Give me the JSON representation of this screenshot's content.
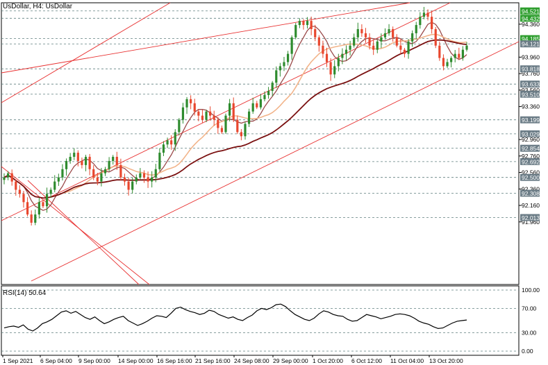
{
  "chart_data": {
    "type": "candlestick",
    "title": "UsDollar, H4:  UsDollar",
    "colors": {
      "bull": "#2e8b2e",
      "bear": "#e8472e",
      "ma_fast": "#9b4a4a",
      "ma_mid": "#f2b48a",
      "ma_slow": "#7a1010",
      "channel": "#e83030",
      "level_line": "#5f7f7f",
      "label_bg": "#6b7c86",
      "label_highlight": "#2e9e2e",
      "rsi_line": "#000000"
    },
    "price_axis": {
      "min": 91.2,
      "max": 94.62,
      "tick_labels": [
        "94.360",
        "93.960",
        "93.760",
        "93.560",
        "93.360",
        "92.960",
        "92.760",
        "92.560",
        "92.360",
        "92.160",
        "91.960"
      ]
    },
    "levels": [
      {
        "value": 94.521,
        "label": "94.521",
        "highlight": true
      },
      {
        "value": 94.432,
        "label": "94.432",
        "highlight": true
      },
      {
        "value": 94.185,
        "label": "94.185",
        "highlight": true
      },
      {
        "value": 94.121,
        "label": "94.121",
        "highlight": false
      },
      {
        "value": 93.818,
        "label": "93.818",
        "highlight": false
      },
      {
        "value": 93.633,
        "label": "93.633",
        "highlight": false
      },
      {
        "value": 93.51,
        "label": "93.510",
        "highlight": false
      },
      {
        "value": 93.199,
        "label": "93.199",
        "highlight": false
      },
      {
        "value": 93.029,
        "label": "93.029",
        "highlight": false
      },
      {
        "value": 92.854,
        "label": "92.854",
        "highlight": false
      },
      {
        "value": 92.692,
        "label": "92.692",
        "highlight": false
      },
      {
        "value": 92.5,
        "label": "92.500",
        "highlight": false
      },
      {
        "value": 92.308,
        "label": "92.308",
        "highlight": false
      },
      {
        "value": 92.013,
        "label": "92.013",
        "highlight": false
      }
    ],
    "x_labels": [
      "1 Sep 2021",
      "6 Sep 04:00",
      "9 Sep 00:00",
      "14 Sep 00:00",
      "16 Sep 16:00",
      "21 Sep 16:00",
      "24 Sep 08:00",
      "29 Sep 00:00",
      "1 Oct 20:00",
      "6 Oct 12:00",
      "11 Oct 04:00",
      "13 Oct 20:00"
    ],
    "price_path": [
      92.5,
      92.55,
      92.45,
      92.35,
      92.3,
      92.2,
      92.05,
      91.95,
      92.05,
      92.2,
      92.15,
      92.3,
      92.35,
      92.45,
      92.5,
      92.6,
      92.7,
      92.75,
      92.8,
      92.7,
      92.65,
      92.75,
      92.6,
      92.5,
      92.45,
      92.55,
      92.6,
      92.7,
      92.75,
      92.65,
      92.5,
      92.45,
      92.35,
      92.45,
      92.5,
      92.55,
      92.5,
      92.45,
      92.5,
      92.6,
      92.8,
      92.9,
      92.95,
      92.9,
      93.05,
      93.2,
      93.35,
      93.45,
      93.4,
      93.3,
      93.25,
      93.2,
      93.3,
      93.25,
      93.2,
      93.1,
      93.05,
      93.25,
      93.4,
      93.2,
      93.05,
      93.0,
      93.15,
      93.3,
      93.4,
      93.35,
      93.45,
      93.5,
      93.55,
      93.65,
      93.8,
      93.85,
      93.9,
      94.0,
      94.2,
      94.35,
      94.4,
      94.35,
      94.4,
      94.3,
      94.2,
      94.1,
      94.0,
      93.9,
      93.75,
      93.85,
      93.95,
      94.0,
      94.05,
      94.1,
      94.2,
      94.3,
      94.25,
      94.2,
      94.1,
      94.05,
      94.15,
      94.2,
      94.25,
      94.3,
      94.2,
      94.1,
      94.05,
      94.0,
      94.15,
      94.25,
      94.35,
      94.45,
      94.5,
      94.45,
      94.3,
      94.1,
      93.95,
      93.85,
      93.9,
      93.95,
      94.0,
      93.95,
      94.05,
      94.1
    ],
    "indicator": {
      "label": "RSI(14) 50.64",
      "levels": [
        "100.00",
        "70.00",
        "30.00",
        "0.00"
      ],
      "values": [
        38,
        40,
        41,
        39,
        43,
        36,
        33,
        38,
        45,
        48,
        52,
        58,
        64,
        66,
        62,
        65,
        60,
        55,
        52,
        56,
        50,
        45,
        48,
        52,
        55,
        57,
        50,
        46,
        42,
        45,
        49,
        54,
        58,
        57,
        55,
        62,
        70,
        72,
        68,
        65,
        63,
        60,
        62,
        67,
        65,
        60,
        57,
        54,
        56,
        52,
        50,
        55,
        59,
        66,
        70,
        68,
        71,
        76,
        77,
        73,
        66,
        60,
        56,
        52,
        50,
        54,
        61,
        66,
        64,
        60,
        58,
        57,
        52,
        49,
        50,
        55,
        60,
        58,
        56,
        53,
        55,
        57,
        60,
        61,
        60,
        58,
        54,
        49,
        46,
        44,
        40,
        37,
        38,
        42,
        46,
        49,
        50,
        51
      ]
    }
  }
}
